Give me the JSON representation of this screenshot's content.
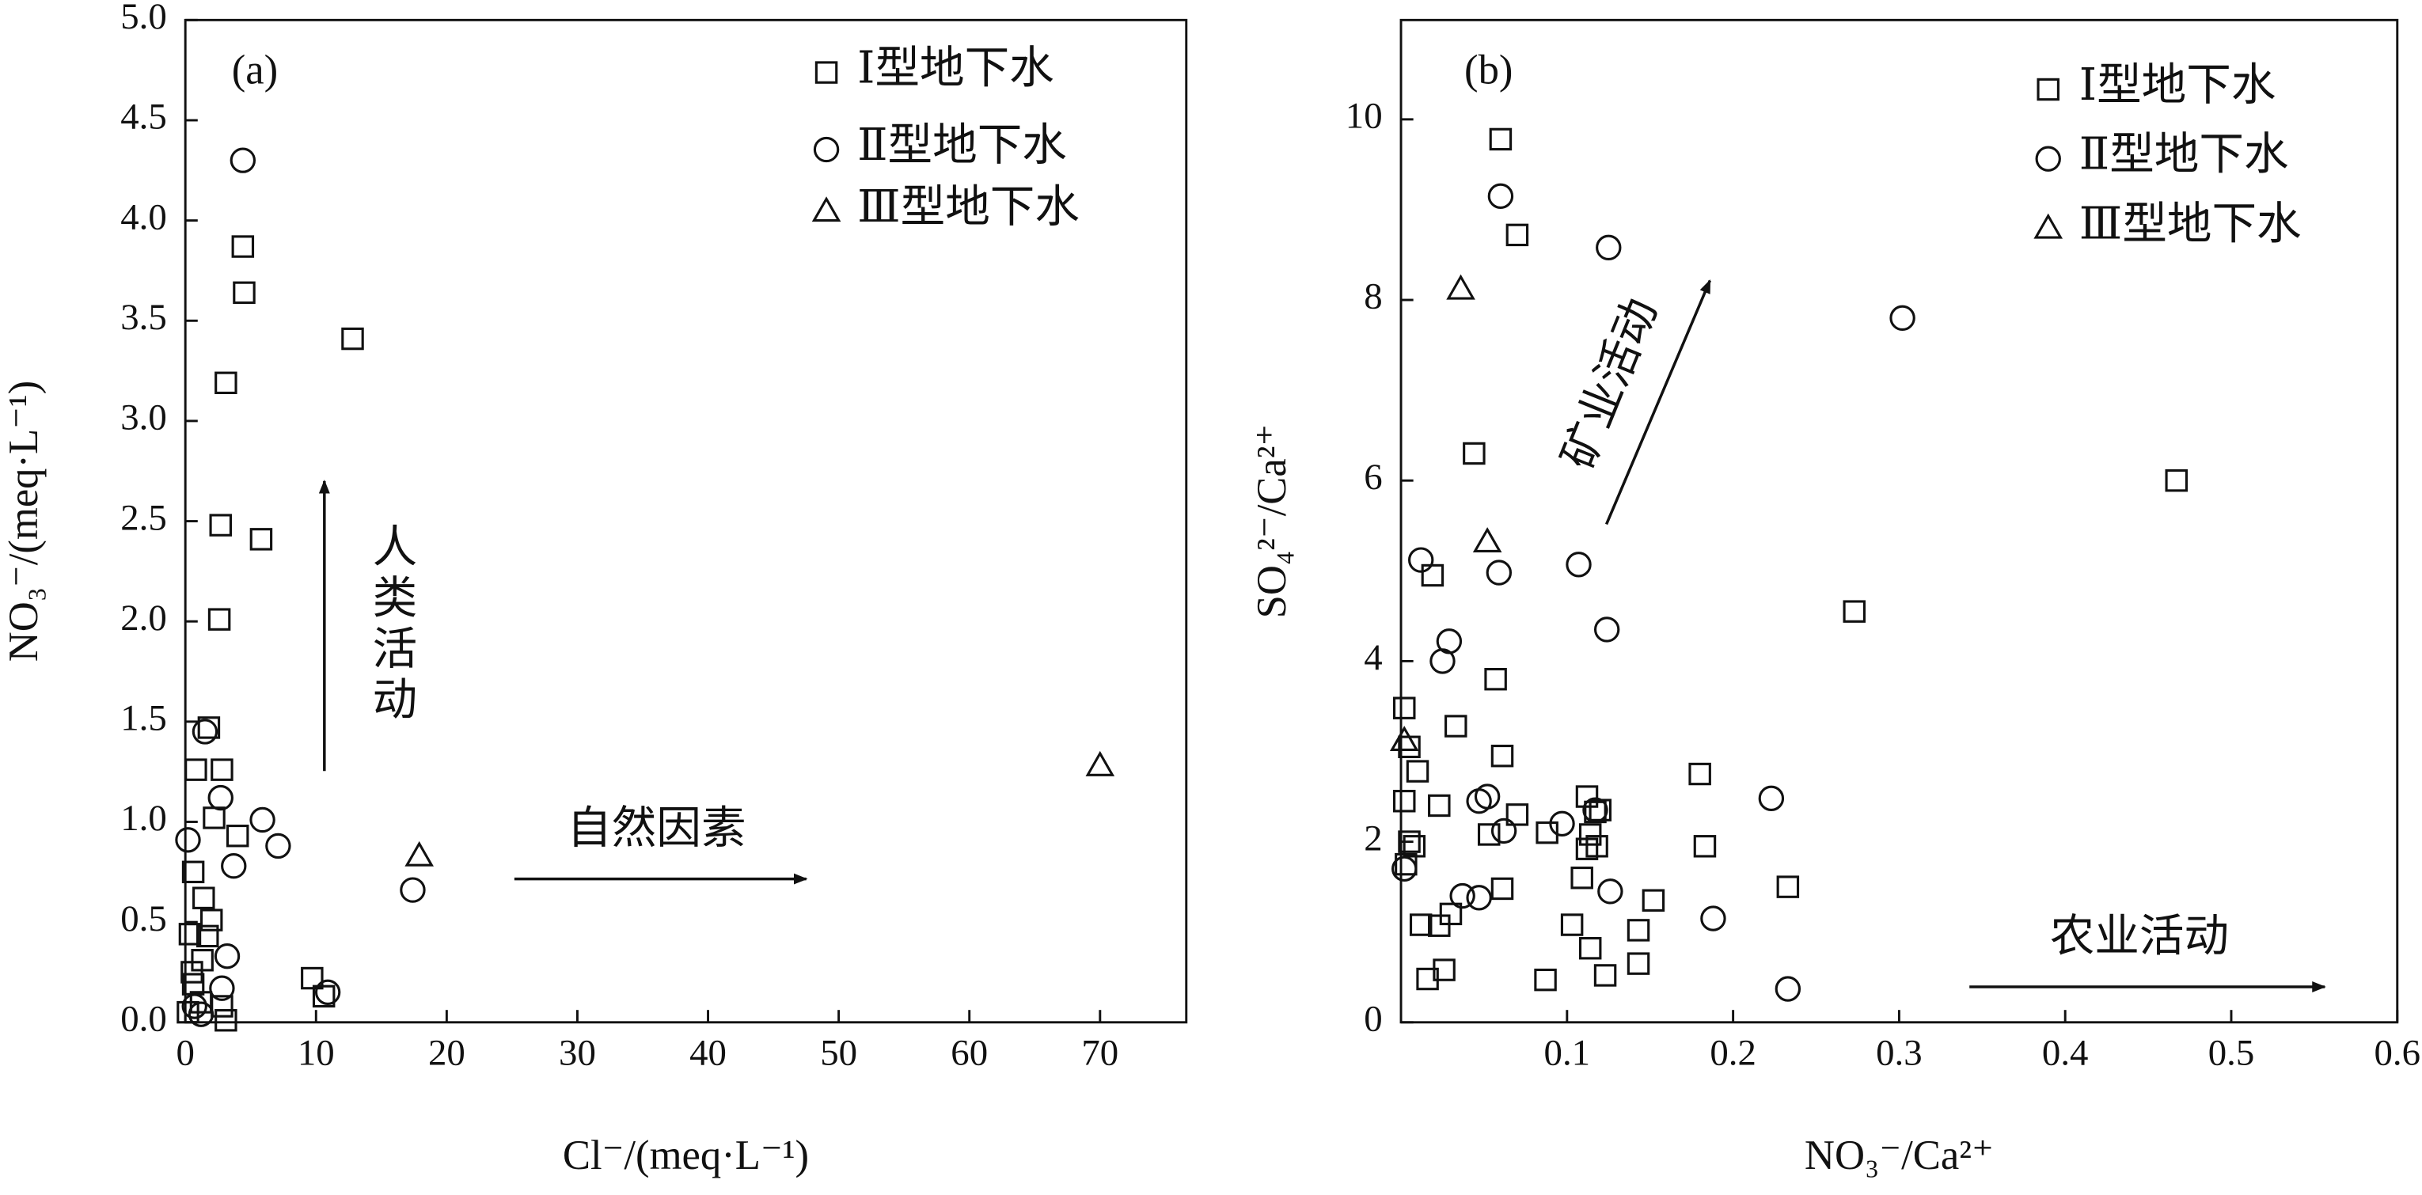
{
  "chart_data": [
    {
      "type": "scatter",
      "panel_label": "(a)",
      "xlabel": "Cl⁻/(meq·L⁻¹)",
      "ylabel": "NO₃⁻/(meq·L⁻¹)",
      "xlim": [
        0,
        76.6
      ],
      "ylim": [
        0,
        5.0
      ],
      "xticks": [
        0,
        10,
        20,
        30,
        40,
        50,
        60,
        70
      ],
      "yticks": [
        {
          "value": 0,
          "label": "0.0"
        },
        0.5,
        {
          "value": 1,
          "label": "1.0"
        },
        1.5,
        {
          "value": 2,
          "label": "2.0"
        },
        2.5,
        {
          "value": 3,
          "label": "3.0"
        },
        3.5,
        {
          "value": 4,
          "label": "4.0"
        },
        4.5,
        {
          "value": 5,
          "label": "5.0"
        }
      ],
      "legend": "upper right",
      "series": [
        {
          "name": "Ⅰ型地下水",
          "marker": "square",
          "color": "#111111",
          "x": [
            4.4,
            4.5,
            12.8,
            3.1,
            2.7,
            5.8,
            2.6,
            1.8,
            0.8,
            2.8,
            2.2,
            4.0,
            0.6,
            1.4,
            2.0,
            0.35,
            1.7,
            1.3,
            0.5,
            0.6,
            2.8,
            0.2,
            9.7,
            10.6,
            3.1,
            1.2
          ],
          "y": [
            3.87,
            3.64,
            3.41,
            3.19,
            2.48,
            2.41,
            2.01,
            1.47,
            1.26,
            1.26,
            1.02,
            0.93,
            0.75,
            0.62,
            0.51,
            0.44,
            0.43,
            0.31,
            0.25,
            0.19,
            0.08,
            0.05,
            0.22,
            0.13,
            0.01,
            0.1
          ]
        },
        {
          "name": "Ⅱ型地下水",
          "marker": "circle",
          "color": "#111111",
          "x": [
            4.4,
            1.5,
            2.7,
            0.2,
            5.9,
            7.1,
            3.7,
            3.2,
            2.8,
            17.4,
            10.9,
            1.2,
            0.7
          ],
          "y": [
            4.3,
            1.45,
            1.12,
            0.91,
            1.01,
            0.88,
            0.78,
            0.33,
            0.17,
            0.66,
            0.15,
            0.04,
            0.08
          ]
        },
        {
          "name": "Ⅲ型地下水",
          "marker": "triangle",
          "color": "#111111",
          "x": [
            17.9,
            70.0
          ],
          "y": [
            0.83,
            1.28
          ]
        }
      ],
      "annotations": [
        {
          "text": "人类活动"
        },
        {
          "text": "自然因素"
        }
      ]
    },
    {
      "type": "scatter",
      "panel_label": "(b)",
      "xlabel": "NO₃⁻/Ca²⁺",
      "ylabel": "SO₄²⁻/Ca²⁺",
      "xlim": [
        0,
        0.6
      ],
      "ylim": [
        0,
        11.1
      ],
      "xticks": [
        0.1,
        0.2,
        0.3,
        0.4,
        0.5,
        0.6
      ],
      "yticks": [
        0,
        2,
        4,
        6,
        8,
        10
      ],
      "legend": "upper right",
      "series": [
        {
          "name": "Ⅰ型地下水",
          "marker": "square",
          "color": "#111111",
          "x": [
            0.06,
            0.07,
            0.044,
            0.019,
            0.467,
            0.273,
            0.057,
            0.002,
            0.033,
            0.005,
            0.061,
            0.01,
            0.18,
            0.002,
            0.023,
            0.112,
            0.117,
            0.12,
            0.114,
            0.112,
            0.118,
            0.053,
            0.088,
            0.005,
            0.008,
            0.003,
            0.109,
            0.061,
            0.183,
            0.233,
            0.152,
            0.012,
            0.023,
            0.103,
            0.143,
            0.114,
            0.143,
            0.026,
            0.016,
            0.087,
            0.123,
            0.03,
            0.07
          ],
          "y": [
            9.78,
            8.72,
            6.3,
            4.95,
            6.0,
            4.55,
            3.8,
            3.48,
            3.28,
            3.05,
            2.95,
            2.78,
            2.75,
            2.45,
            2.4,
            2.5,
            2.33,
            2.35,
            2.08,
            1.92,
            1.95,
            2.08,
            2.1,
            2.0,
            1.95,
            1.75,
            1.6,
            1.48,
            1.95,
            1.5,
            1.35,
            1.08,
            1.07,
            1.08,
            1.02,
            0.82,
            0.65,
            0.58,
            0.48,
            0.47,
            0.52,
            1.2,
            2.3
          ]
        },
        {
          "name": "Ⅱ型地下水",
          "marker": "circle",
          "color": "#111111",
          "x": [
            0.06,
            0.125,
            0.302,
            0.012,
            0.059,
            0.107,
            0.124,
            0.029,
            0.025,
            0.052,
            0.047,
            0.117,
            0.097,
            0.062,
            0.223,
            0.037,
            0.047,
            0.126,
            0.188,
            0.233,
            0.002
          ],
          "y": [
            9.15,
            8.58,
            7.8,
            5.12,
            4.98,
            5.07,
            4.35,
            4.22,
            4.0,
            2.5,
            2.45,
            2.35,
            2.2,
            2.12,
            2.48,
            1.4,
            1.38,
            1.45,
            1.15,
            0.37,
            1.7
          ]
        },
        {
          "name": "Ⅲ型地下水",
          "marker": "triangle",
          "color": "#111111",
          "x": [
            0.036,
            0.052,
            0.002
          ],
          "y": [
            8.12,
            5.32,
            3.12
          ]
        }
      ],
      "annotations": [
        {
          "text": "矿业活动"
        },
        {
          "text": "农业活动"
        }
      ]
    }
  ]
}
